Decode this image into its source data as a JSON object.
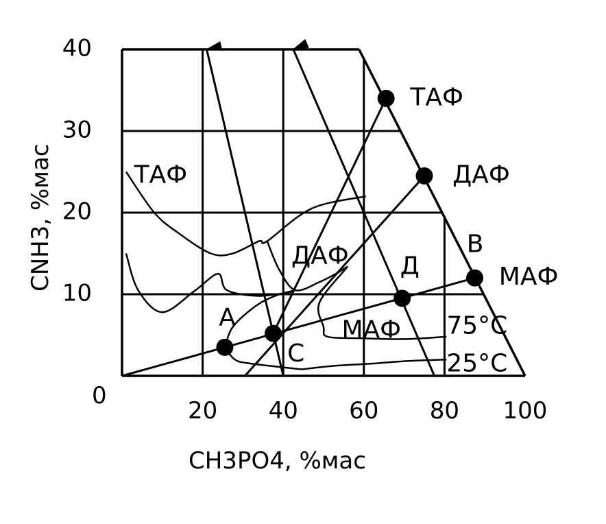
{
  "chart_data": {
    "type": "scatter",
    "xlabel": "CH3PO4, %мас",
    "ylabel": "CNH3, %мас",
    "xlim": [
      0,
      100
    ],
    "ylim": [
      0,
      40
    ],
    "origin_label": "0",
    "x_ticks": [
      {
        "value": 20,
        "label": "20"
      },
      {
        "value": 40,
        "label": "40"
      },
      {
        "value": 60,
        "label": "60"
      },
      {
        "value": 80,
        "label": "80"
      },
      {
        "value": 100,
        "label": "100"
      }
    ],
    "y_ticks": [
      {
        "value": 10,
        "label": "10"
      },
      {
        "value": 20,
        "label": "20"
      },
      {
        "value": 30,
        "label": "30"
      },
      {
        "value": 40,
        "label": "40"
      }
    ],
    "grid_x": [
      20,
      40,
      60,
      80
    ],
    "grid_y": [
      10,
      20,
      30
    ],
    "boundary": [
      [
        58.8,
        40
      ],
      [
        100,
        0
      ]
    ],
    "points": [
      {
        "name": "ТАФ",
        "x": 65.5,
        "y": 34
      },
      {
        "name": "ДАФ",
        "x": 75,
        "y": 24.5
      },
      {
        "name": "МАФ",
        "x": 87.5,
        "y": 12
      },
      {
        "name": "Д",
        "x": 69.5,
        "y": 9.5
      },
      {
        "name": "А",
        "x": 25.5,
        "y": 3.5
      },
      {
        "name": "С",
        "x": 37.5,
        "y": 5.2
      }
    ],
    "lines": [
      {
        "from": [
          0,
          0
        ],
        "to": [
          87.5,
          12
        ]
      },
      {
        "from": [
          37.5,
          5.2
        ],
        "to": [
          65.5,
          34
        ]
      },
      {
        "from": [
          40,
          0
        ],
        "to": [
          21,
          40
        ]
      },
      {
        "from": [
          77.5,
          0
        ],
        "to": [
          42.5,
          40
        ]
      },
      {
        "from": [
          30.5,
          0
        ],
        "to": [
          75,
          24.5
        ]
      }
    ],
    "curves": [
      {
        "name": "ТАФ-25",
        "points": [
          [
            1,
            25
          ],
          [
            8,
            20
          ],
          [
            14,
            17.5
          ],
          [
            22,
            15
          ],
          [
            27.5,
            15
          ],
          [
            34,
            16.5
          ],
          [
            36,
            16.5
          ],
          [
            47,
            20.5
          ],
          [
            60.5,
            22
          ]
        ]
      },
      {
        "name": "ДАФ-25",
        "points": [
          [
            36,
            16.5
          ],
          [
            39,
            13
          ],
          [
            43,
            10.5
          ],
          [
            49,
            11.5
          ],
          [
            53,
            12.5
          ],
          [
            56,
            13.4
          ]
        ]
      },
      {
        "name": "МАФ-25",
        "points": [
          [
            44.5,
            0.8
          ],
          [
            52,
            1.2
          ],
          [
            62,
            1.5
          ],
          [
            70,
            1.8
          ],
          [
            80.5,
            2
          ]
        ]
      },
      {
        "name": "left-25",
        "points": [
          [
            1,
            15
          ],
          [
            4,
            10.5
          ],
          [
            10,
            7.8
          ],
          [
            18,
            10.4
          ],
          [
            23.8,
            12.5
          ],
          [
            26,
            10.5
          ],
          [
            33.5,
            9.8
          ],
          [
            41,
            10.2
          ],
          [
            43,
            10.5
          ]
        ]
      },
      {
        "name": "ТАФ-75",
        "points": [
          [
            25.5,
            3.5
          ],
          [
            27.5,
            6
          ],
          [
            33,
            8.5
          ],
          [
            38,
            9.8
          ],
          [
            43,
            10.5
          ]
        ]
      },
      {
        "name": "МАФ-75",
        "points": [
          [
            25.5,
            3.5
          ],
          [
            28,
            2
          ],
          [
            32,
            1.5
          ],
          [
            44.5,
            0.8
          ]
        ]
      },
      {
        "name": "ДАФ-75",
        "points": [
          [
            56,
            13.4
          ],
          [
            49,
            9
          ],
          [
            50,
            6
          ],
          [
            51,
            4.8
          ],
          [
            60,
            4.6
          ],
          [
            70,
            4.5
          ],
          [
            80.5,
            4.8
          ]
        ]
      }
    ],
    "annotations": [
      {
        "text": "ТАФ",
        "x": 71.5,
        "y": 34
      },
      {
        "text": "ДАФ",
        "x": 82,
        "y": 24.5
      },
      {
        "text": "МАФ",
        "x": 93.5,
        "y": 12
      },
      {
        "text": "В",
        "x": 85.5,
        "y": 16
      },
      {
        "text": "Д",
        "x": 69,
        "y": 13.3
      },
      {
        "text": "А",
        "x": 24,
        "y": 7
      },
      {
        "text": "С",
        "x": 41,
        "y": 2.6
      },
      {
        "text": "ТАФ",
        "x": 3,
        "y": 24.5
      },
      {
        "text": "ДАФ",
        "x": 42,
        "y": 14.6
      },
      {
        "text": "МАФ",
        "x": 54.5,
        "y": 5.5
      },
      {
        "text": "75°С",
        "x": 80.5,
        "y": 6
      },
      {
        "text": "25°С",
        "x": 80.5,
        "y": 1.4
      }
    ]
  }
}
